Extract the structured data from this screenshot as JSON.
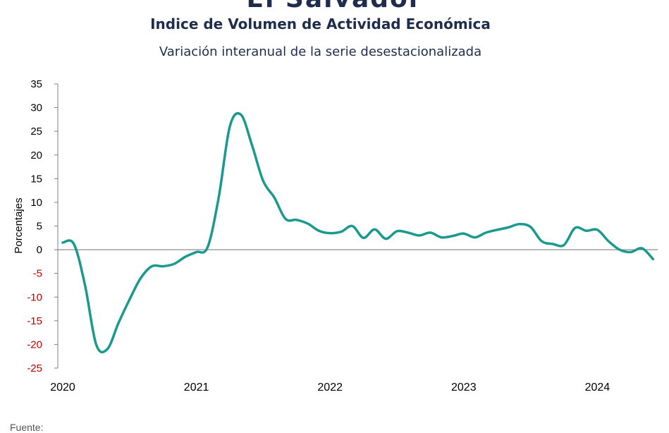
{
  "header": {
    "country": "El Salvador",
    "title": "Indice de Volumen de  Actividad Económica",
    "subtitle": "Variación interanual de la serie desestacionalizada"
  },
  "footer": {
    "source_label": "Fuente:"
  },
  "colors": {
    "line": "#1a9a8e",
    "negative_tick": "#c00000",
    "axis": "#808080",
    "text": "#1f2d4d"
  },
  "chart_data": {
    "type": "line",
    "title": "Indice de Volumen de  Actividad Económica",
    "subtitle": "Variación interanual de la serie desestacionalizada",
    "xlabel": "",
    "ylabel": "Porcentajes",
    "ylim": [
      -25,
      35
    ],
    "yticks": [
      35,
      30,
      25,
      20,
      15,
      10,
      5,
      0,
      -5,
      -10,
      -15,
      -20,
      -25
    ],
    "xticks": [
      "2020",
      "2021",
      "2022",
      "2023",
      "2024"
    ],
    "grid": false,
    "series": [
      {
        "name": "",
        "x": [
          "2020-01",
          "2020-02",
          "2020-03",
          "2020-04",
          "2020-05",
          "2020-06",
          "2020-07",
          "2020-08",
          "2020-09",
          "2020-10",
          "2020-11",
          "2020-12",
          "2021-01",
          "2021-02",
          "2021-03",
          "2021-04",
          "2021-05",
          "2021-06",
          "2021-07",
          "2021-08",
          "2021-09",
          "2021-10",
          "2021-11",
          "2021-12",
          "2022-01",
          "2022-02",
          "2022-03",
          "2022-04",
          "2022-05",
          "2022-06",
          "2022-07",
          "2022-08",
          "2022-09",
          "2022-10",
          "2022-11",
          "2022-12",
          "2023-01",
          "2023-02",
          "2023-03",
          "2023-04",
          "2023-05",
          "2023-06",
          "2023-07",
          "2023-08",
          "2023-09",
          "2023-10",
          "2023-11",
          "2023-12",
          "2024-01",
          "2024-02",
          "2024-03",
          "2024-04",
          "2024-05",
          "2024-06"
        ],
        "values": [
          1.5,
          1.2,
          -7.5,
          -20.0,
          -21.0,
          -15.5,
          -10.5,
          -6.0,
          -3.5,
          -3.5,
          -3.0,
          -1.5,
          -0.5,
          0.5,
          11.0,
          26.0,
          28.5,
          22.0,
          14.5,
          11.0,
          6.5,
          6.3,
          5.5,
          4.0,
          3.5,
          3.8,
          5.0,
          2.5,
          4.3,
          2.3,
          3.9,
          3.6,
          3.0,
          3.6,
          2.6,
          2.9,
          3.4,
          2.6,
          3.6,
          4.2,
          4.7,
          5.4,
          4.8,
          1.8,
          1.2,
          1.0,
          4.6,
          4.0,
          4.2,
          1.8,
          0.0,
          -0.5,
          0.3,
          -2.0
        ]
      }
    ]
  }
}
